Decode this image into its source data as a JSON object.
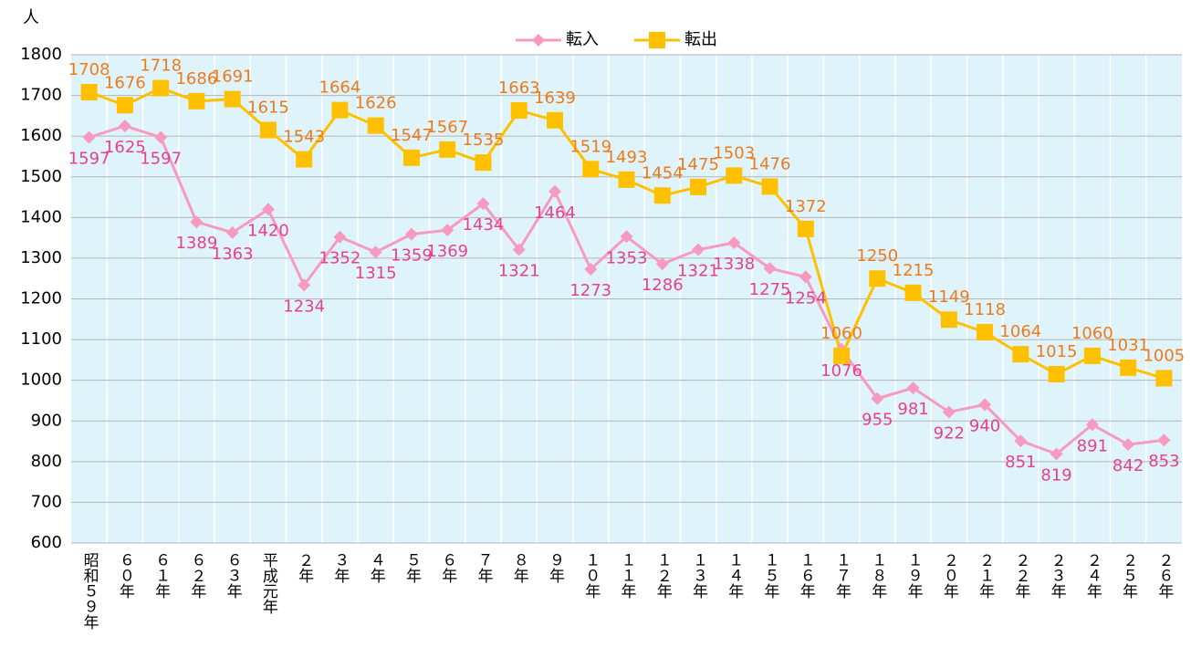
{
  "chart_data": {
    "type": "line",
    "y_label": "人",
    "categories": [
      "昭和５９年",
      "６０年",
      "６１年",
      "６２年",
      "６３年",
      "平成元年",
      "２年",
      "３年",
      "４年",
      "５年",
      "６年",
      "７年",
      "８年",
      "９年",
      "１０年",
      "１１年",
      "１２年",
      "１３年",
      "１４年",
      "１５年",
      "１６年",
      "１７年",
      "１８年",
      "１９年",
      "２０年",
      "２１年",
      "２２年",
      "２３年",
      "２４年",
      "２５年",
      "２６年"
    ],
    "series": [
      {
        "name": "転入",
        "color": "#f79ac0",
        "label_color": "#e8408c",
        "marker": "diamond",
        "values": [
          1597,
          1625,
          1597,
          1389,
          1363,
          1420,
          1234,
          1352,
          1315,
          1359,
          1369,
          1434,
          1321,
          1464,
          1273,
          1353,
          1286,
          1321,
          1338,
          1275,
          1254,
          1076,
          955,
          981,
          922,
          940,
          851,
          819,
          891,
          842,
          853
        ]
      },
      {
        "name": "転出",
        "color": "#ffc000",
        "label_color": "#ee7a1c",
        "marker": "square",
        "values": [
          1708,
          1676,
          1718,
          1686,
          1691,
          1615,
          1543,
          1664,
          1626,
          1547,
          1567,
          1535,
          1663,
          1639,
          1519,
          1493,
          1454,
          1475,
          1503,
          1476,
          1372,
          1060,
          1250,
          1215,
          1149,
          1118,
          1064,
          1015,
          1060,
          1031,
          1005
        ]
      }
    ],
    "ylim": [
      600,
      1800
    ],
    "yticks": [
      600,
      700,
      800,
      900,
      1000,
      1100,
      1200,
      1300,
      1400,
      1500,
      1600,
      1700,
      1800
    ],
    "grid": true,
    "legend": "top"
  }
}
